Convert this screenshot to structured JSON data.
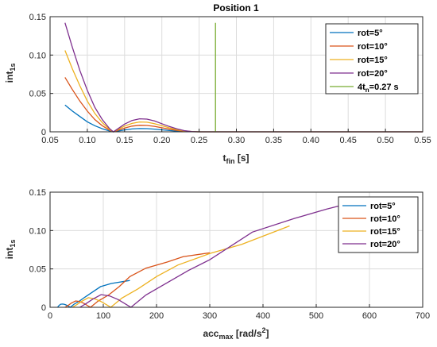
{
  "chart_data": [
    {
      "type": "line",
      "title": "Position 1",
      "xlabel": "t",
      "xlabel_sub": "fin",
      "xlabel_unit": " [s]",
      "ylabel": "int",
      "ylabel_sub": "1s",
      "xlim": [
        0.05,
        0.55
      ],
      "ylim": [
        0,
        0.15
      ],
      "xticks": [
        0.05,
        0.1,
        0.15,
        0.2,
        0.25,
        0.3,
        0.35,
        0.4,
        0.45,
        0.5,
        0.55
      ],
      "xtick_labels": [
        "0.05",
        "0.10",
        "0.15",
        "0.20",
        "0.25",
        "0.30",
        "0.35",
        "0.40",
        "0.45",
        "0.50",
        "0.55"
      ],
      "yticks": [
        0,
        0.05,
        0.1,
        0.15
      ],
      "ytick_labels": [
        "0",
        "0.05",
        "0.10",
        "0.15"
      ],
      "grid": true,
      "legend_position": "top-right",
      "series": [
        {
          "name": "rot=5°",
          "color": "#0072BD",
          "points": [
            [
              0.07,
              0.035
            ],
            [
              0.08,
              0.027
            ],
            [
              0.09,
              0.02
            ],
            [
              0.1,
              0.013
            ],
            [
              0.11,
              0.008
            ],
            [
              0.12,
              0.004
            ],
            [
              0.13,
              0.001
            ],
            [
              0.135,
              0.0
            ],
            [
              0.14,
              0.0008
            ],
            [
              0.15,
              0.0025
            ],
            [
              0.16,
              0.0037
            ],
            [
              0.17,
              0.0042
            ],
            [
              0.18,
              0.0041
            ],
            [
              0.19,
              0.0035
            ],
            [
              0.2,
              0.0026
            ],
            [
              0.21,
              0.0017
            ],
            [
              0.22,
              0.0009
            ],
            [
              0.23,
              0.0004
            ],
            [
              0.24,
              0.0001
            ],
            [
              0.25,
              0.0
            ],
            [
              0.55,
              0.0
            ]
          ]
        },
        {
          "name": "rot=10°",
          "color": "#D95319",
          "points": [
            [
              0.07,
              0.071
            ],
            [
              0.08,
              0.055
            ],
            [
              0.09,
              0.04
            ],
            [
              0.1,
              0.027
            ],
            [
              0.11,
              0.016
            ],
            [
              0.12,
              0.008
            ],
            [
              0.13,
              0.002
            ],
            [
              0.135,
              0.0
            ],
            [
              0.14,
              0.0016
            ],
            [
              0.15,
              0.005
            ],
            [
              0.16,
              0.0075
            ],
            [
              0.17,
              0.0085
            ],
            [
              0.18,
              0.0083
            ],
            [
              0.19,
              0.0071
            ],
            [
              0.2,
              0.0053
            ],
            [
              0.21,
              0.0034
            ],
            [
              0.22,
              0.0019
            ],
            [
              0.23,
              0.0008
            ],
            [
              0.24,
              0.0002
            ],
            [
              0.25,
              0.0
            ],
            [
              0.55,
              0.0
            ]
          ]
        },
        {
          "name": "rot=15°",
          "color": "#EDB120",
          "points": [
            [
              0.07,
              0.106
            ],
            [
              0.08,
              0.082
            ],
            [
              0.09,
              0.06
            ],
            [
              0.1,
              0.04
            ],
            [
              0.11,
              0.024
            ],
            [
              0.12,
              0.012
            ],
            [
              0.13,
              0.003
            ],
            [
              0.135,
              0.0
            ],
            [
              0.14,
              0.0025
            ],
            [
              0.15,
              0.0075
            ],
            [
              0.16,
              0.011
            ],
            [
              0.17,
              0.0128
            ],
            [
              0.18,
              0.0125
            ],
            [
              0.19,
              0.0107
            ],
            [
              0.2,
              0.008
            ],
            [
              0.21,
              0.0052
            ],
            [
              0.22,
              0.0028
            ],
            [
              0.23,
              0.0012
            ],
            [
              0.24,
              0.0003
            ],
            [
              0.25,
              0.0
            ],
            [
              0.55,
              0.0
            ]
          ]
        },
        {
          "name": "rot=20°",
          "color": "#7E2F8E",
          "points": [
            [
              0.07,
              0.142
            ],
            [
              0.08,
              0.11
            ],
            [
              0.09,
              0.08
            ],
            [
              0.1,
              0.054
            ],
            [
              0.11,
              0.032
            ],
            [
              0.12,
              0.016
            ],
            [
              0.13,
              0.004
            ],
            [
              0.135,
              0.0
            ],
            [
              0.14,
              0.0033
            ],
            [
              0.15,
              0.01
            ],
            [
              0.16,
              0.0148
            ],
            [
              0.17,
              0.017
            ],
            [
              0.18,
              0.0166
            ],
            [
              0.19,
              0.0142
            ],
            [
              0.2,
              0.0106
            ],
            [
              0.21,
              0.0069
            ],
            [
              0.22,
              0.0038
            ],
            [
              0.23,
              0.0016
            ],
            [
              0.24,
              0.0004
            ],
            [
              0.25,
              0.0
            ],
            [
              0.55,
              0.0
            ]
          ]
        },
        {
          "name": "4t",
          "name_sub": "n",
          "name_suffix": "=0.27 s",
          "color": "#77AC30",
          "points": [
            [
              0.272,
              0.0
            ],
            [
              0.272,
              0.142
            ]
          ]
        }
      ]
    },
    {
      "type": "line",
      "title": "",
      "xlabel": "acc",
      "xlabel_sub": "max",
      "xlabel_unit": " [rad/s",
      "xlabel_sup": "2",
      "xlabel_tail": "]",
      "ylabel": "int",
      "ylabel_sub": "1s",
      "xlim": [
        0,
        700
      ],
      "ylim": [
        0,
        0.15
      ],
      "xticks": [
        0,
        100,
        200,
        300,
        400,
        500,
        600,
        700
      ],
      "xtick_labels": [
        "0",
        "100",
        "200",
        "300",
        "400",
        "500",
        "600",
        "700"
      ],
      "yticks": [
        0,
        0.05,
        0.1,
        0.15
      ],
      "ytick_labels": [
        "0",
        "0.05",
        "0.10",
        "0.15"
      ],
      "grid": true,
      "legend_position": "top-right",
      "series": [
        {
          "name": "rot=5°",
          "color": "#0072BD",
          "points": [
            [
              14,
              0.0
            ],
            [
              17,
              0.0025
            ],
            [
              20,
              0.004
            ],
            [
              24,
              0.0042
            ],
            [
              28,
              0.0036
            ],
            [
              32,
              0.0025
            ],
            [
              36,
              0.0008
            ],
            [
              38,
              0.0
            ],
            [
              45,
              0.004
            ],
            [
              55,
              0.008
            ],
            [
              65,
              0.013
            ],
            [
              80,
              0.02
            ],
            [
              95,
              0.027
            ],
            [
              115,
              0.031
            ],
            [
              150,
              0.035
            ]
          ]
        },
        {
          "name": "rot=10°",
          "color": "#D95319",
          "points": [
            [
              28,
              0.0
            ],
            [
              34,
              0.0025
            ],
            [
              40,
              0.0055
            ],
            [
              48,
              0.0083
            ],
            [
              56,
              0.0075
            ],
            [
              64,
              0.005
            ],
            [
              72,
              0.0016
            ],
            [
              76,
              0.0
            ],
            [
              90,
              0.008
            ],
            [
              110,
              0.016
            ],
            [
              130,
              0.027
            ],
            [
              150,
              0.04
            ],
            [
              180,
              0.051
            ],
            [
              220,
              0.059
            ],
            [
              250,
              0.066
            ],
            [
              300,
              0.071
            ]
          ]
        },
        {
          "name": "rot=15°",
          "color": "#EDB120",
          "points": [
            [
              42,
              0.0
            ],
            [
              51,
              0.0038
            ],
            [
              60,
              0.008
            ],
            [
              72,
              0.0125
            ],
            [
              84,
              0.011
            ],
            [
              96,
              0.0075
            ],
            [
              108,
              0.0025
            ],
            [
              114,
              0.0
            ],
            [
              135,
              0.012
            ],
            [
              165,
              0.024
            ],
            [
              200,
              0.04
            ],
            [
              240,
              0.055
            ],
            [
              300,
              0.07
            ],
            [
              360,
              0.082
            ],
            [
              450,
              0.106
            ]
          ]
        },
        {
          "name": "rot=20°",
          "color": "#7E2F8E",
          "points": [
            [
              56,
              0.0
            ],
            [
              68,
              0.005
            ],
            [
              80,
              0.0106
            ],
            [
              96,
              0.0166
            ],
            [
              112,
              0.0148
            ],
            [
              128,
              0.01
            ],
            [
              144,
              0.0033
            ],
            [
              152,
              0.0
            ],
            [
              180,
              0.016
            ],
            [
              220,
              0.032
            ],
            [
              260,
              0.048
            ],
            [
              300,
              0.062
            ],
            [
              380,
              0.098
            ],
            [
              460,
              0.116
            ],
            [
              520,
              0.128
            ],
            [
              600,
              0.142
            ]
          ]
        }
      ]
    }
  ]
}
